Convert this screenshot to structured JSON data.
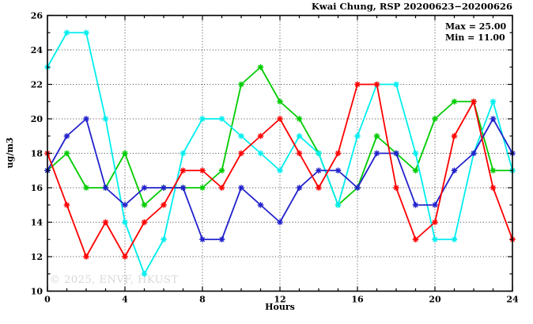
{
  "title": "Kwai Chung, RSP 20200623−20200626",
  "annotation": {
    "max_label": "Max = 25.00",
    "min_label": "Min = 11.00"
  },
  "watermark": "© 2025, ENVF, HKUST",
  "chart_data": {
    "type": "line",
    "title": "Kwai Chung, RSP 20200623−20200626",
    "xlabel": "Hours",
    "ylabel": "ug/m3",
    "xlim": [
      0,
      24
    ],
    "ylim": [
      10,
      26
    ],
    "x_major_ticks": [
      0,
      4,
      8,
      12,
      16,
      20,
      24
    ],
    "y_major_ticks": [
      10,
      12,
      14,
      16,
      18,
      20,
      22,
      24,
      26
    ],
    "x_minor_step": 1,
    "y_minor_step": 1,
    "grid": true,
    "legend_position": "none",
    "marker": "asterisk",
    "stats": {
      "max": 25.0,
      "min": 11.0
    },
    "x": [
      0,
      1,
      2,
      3,
      4,
      5,
      6,
      7,
      8,
      9,
      10,
      11,
      12,
      13,
      14,
      15,
      16,
      17,
      18,
      19,
      20,
      21,
      22,
      23,
      24
    ],
    "series": [
      {
        "name": "green",
        "color": "#00cc00",
        "values": [
          17,
          18,
          16,
          16,
          18,
          15,
          16,
          16,
          16,
          17,
          22,
          23,
          21,
          20,
          18,
          15,
          16,
          19,
          18,
          17,
          20,
          21,
          21,
          17,
          17
        ]
      },
      {
        "name": "cyan",
        "color": "#00eeee",
        "values": [
          23,
          25,
          25,
          20,
          14,
          11,
          13,
          18,
          20,
          20,
          19,
          18,
          17,
          19,
          18,
          15,
          19,
          22,
          22,
          18,
          13,
          13,
          18,
          21,
          17
        ]
      },
      {
        "name": "blue",
        "color": "#2222cc",
        "values": [
          17,
          19,
          20,
          16,
          15,
          16,
          16,
          16,
          13,
          13,
          16,
          15,
          14,
          16,
          17,
          17,
          16,
          18,
          18,
          15,
          15,
          17,
          18,
          20,
          18
        ]
      },
      {
        "name": "red",
        "color": "#ff0000",
        "values": [
          18,
          15,
          12,
          14,
          12,
          14,
          15,
          17,
          17,
          16,
          18,
          19,
          20,
          18,
          16,
          18,
          22,
          22,
          16,
          13,
          14,
          19,
          21,
          16,
          13
        ]
      }
    ]
  }
}
